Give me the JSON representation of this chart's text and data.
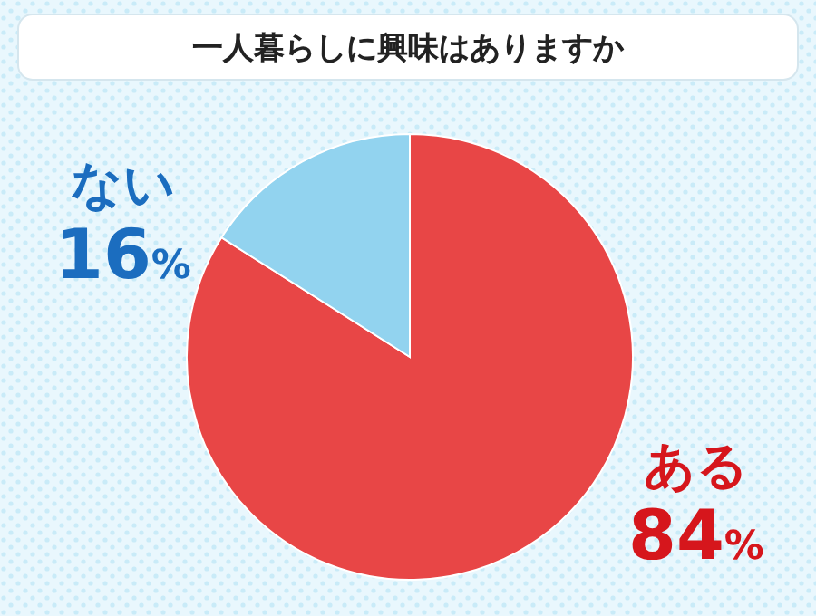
{
  "chart_data": {
    "type": "pie",
    "title": "一人暮らしに興味はありますか",
    "categories": [
      "ある",
      "ない"
    ],
    "values": [
      84,
      16
    ],
    "colors": [
      "#e84646",
      "#92d3ef"
    ],
    "value_labels": [
      "84%",
      "16%"
    ]
  }
}
